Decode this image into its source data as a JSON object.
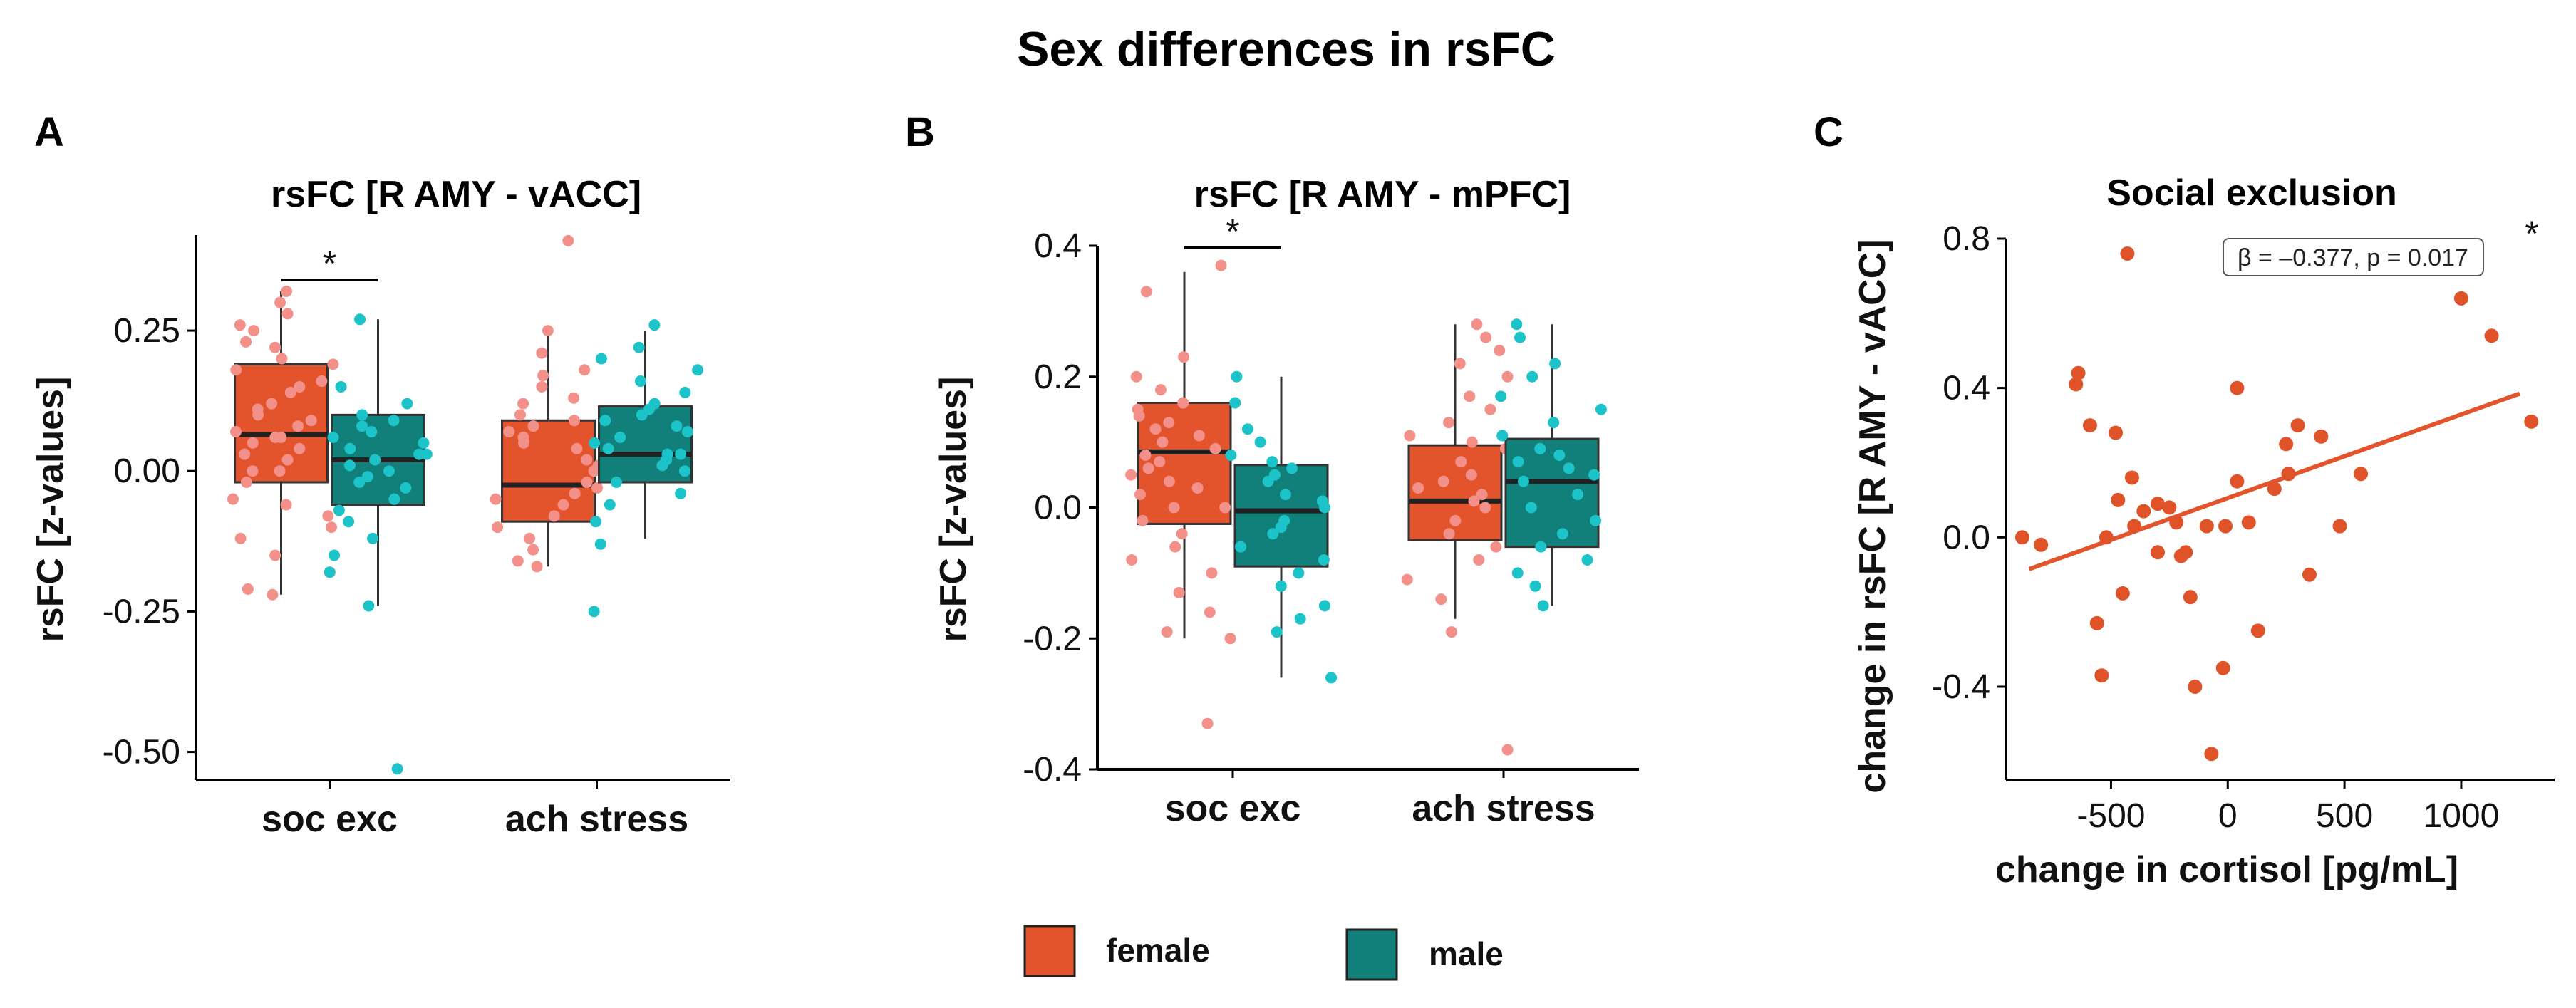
{
  "figure": {
    "title": "Sex differences in rsFC",
    "colors": {
      "female_box": "#E3532C",
      "male_box": "#12807A",
      "female_point": "#F4908A",
      "male_point": "#1CC3C8",
      "regression": "#E3532C",
      "scatter_point": "#E05329"
    },
    "legend": [
      {
        "label": "female",
        "color": "#E3532C"
      },
      {
        "label": "male",
        "color": "#12807A"
      }
    ]
  },
  "chart_data": [
    {
      "type": "box",
      "panel": "A",
      "title": "rsFC [R AMY - vACC]",
      "ylabel": "rsFC [z-values]",
      "xlabel": "",
      "ylim": [
        -0.55,
        0.42
      ],
      "yticks": [
        0.25,
        0.0,
        -0.25,
        -0.5
      ],
      "ytick_labels": [
        "0.25",
        "0.00",
        "-0.25",
        "-0.50"
      ],
      "categories": [
        "soc exc",
        "ach stress"
      ],
      "significance": [
        {
          "category": "soc exc",
          "label": "*"
        }
      ],
      "series": [
        {
          "name": "female",
          "boxes": [
            {
              "q1": -0.02,
              "median": 0.065,
              "q3": 0.19,
              "whisker_low": -0.22,
              "whisker_high": 0.32
            },
            {
              "q1": -0.09,
              "median": -0.025,
              "q3": 0.09,
              "whisker_low": -0.17,
              "whisker_high": 0.25
            }
          ]
        },
        {
          "name": "male",
          "boxes": [
            {
              "q1": -0.06,
              "median": 0.02,
              "q3": 0.1,
              "whisker_low": -0.24,
              "whisker_high": 0.27
            },
            {
              "q1": -0.02,
              "median": 0.03,
              "q3": 0.115,
              "whisker_low": -0.12,
              "whisker_high": 0.25
            }
          ]
        }
      ]
    },
    {
      "type": "box",
      "panel": "B",
      "title": "rsFC [R AMY - mPFC]",
      "ylabel": "rsFC [z-values]",
      "xlabel": "",
      "ylim": [
        -0.4,
        0.4
      ],
      "yticks": [
        0.4,
        0.2,
        0.0,
        -0.2,
        -0.4
      ],
      "ytick_labels": [
        "0.4",
        "0.2",
        "0.0",
        "-0.2",
        "-0.4"
      ],
      "categories": [
        "soc exc",
        "ach stress"
      ],
      "significance": [
        {
          "category": "soc exc",
          "label": "*"
        }
      ],
      "series": [
        {
          "name": "female",
          "boxes": [
            {
              "q1": -0.025,
              "median": 0.085,
              "q3": 0.16,
              "whisker_low": -0.2,
              "whisker_high": 0.36
            },
            {
              "q1": -0.05,
              "median": 0.01,
              "q3": 0.095,
              "whisker_low": -0.17,
              "whisker_high": 0.28
            }
          ]
        },
        {
          "name": "male",
          "boxes": [
            {
              "q1": -0.09,
              "median": -0.005,
              "q3": 0.065,
              "whisker_low": -0.26,
              "whisker_high": 0.2
            },
            {
              "q1": -0.06,
              "median": 0.04,
              "q3": 0.105,
              "whisker_low": -0.15,
              "whisker_high": 0.28
            }
          ]
        }
      ]
    },
    {
      "type": "scatter",
      "panel": "C",
      "title": "Social exclusion",
      "xlabel": "change in cortisol [pg/mL]",
      "ylabel": "change in rsFC [R AMY - vACC]",
      "xlim": [
        -950,
        1400
      ],
      "ylim": [
        -0.65,
        0.8
      ],
      "xticks": [
        -500,
        0,
        500,
        1000
      ],
      "xtick_labels": [
        "-500",
        "0",
        "500",
        "1000"
      ],
      "yticks": [
        0.8,
        0.4,
        0.0,
        -0.4
      ],
      "ytick_labels": [
        "0.8",
        "0.4",
        "0.0",
        "-0.4"
      ],
      "annotation": "β = –0.377, p = 0.017",
      "significance": "*",
      "regression": {
        "x": [
          -850,
          1250
        ],
        "y": [
          -0.085,
          0.385
        ]
      },
      "points": [
        [
          -880,
          0.0
        ],
        [
          -800,
          -0.02
        ],
        [
          -640,
          0.44
        ],
        [
          -650,
          0.41
        ],
        [
          -590,
          0.3
        ],
        [
          -560,
          -0.23
        ],
        [
          -540,
          -0.37
        ],
        [
          -520,
          0.0
        ],
        [
          -480,
          0.28
        ],
        [
          -450,
          -0.15
        ],
        [
          -470,
          0.1
        ],
        [
          -430,
          0.76
        ],
        [
          -410,
          0.16
        ],
        [
          -400,
          0.03
        ],
        [
          -300,
          0.09
        ],
        [
          -250,
          0.08
        ],
        [
          -220,
          0.04
        ],
        [
          -200,
          -0.05
        ],
        [
          -180,
          -0.04
        ],
        [
          -160,
          -0.16
        ],
        [
          -140,
          -0.4
        ],
        [
          -90,
          0.03
        ],
        [
          -70,
          -0.58
        ],
        [
          -20,
          -0.35
        ],
        [
          -10,
          0.03
        ],
        [
          40,
          0.4
        ],
        [
          40,
          0.15
        ],
        [
          90,
          0.04
        ],
        [
          130,
          -0.25
        ],
        [
          200,
          0.13
        ],
        [
          250,
          0.25
        ],
        [
          260,
          0.17
        ],
        [
          300,
          0.3
        ],
        [
          350,
          -0.1
        ],
        [
          400,
          0.27
        ],
        [
          480,
          0.03
        ],
        [
          570,
          0.17
        ],
        [
          1000,
          0.64
        ],
        [
          1130,
          0.54
        ],
        [
          1300,
          0.31
        ],
        [
          -300,
          -0.04
        ],
        [
          -360,
          0.07
        ]
      ]
    }
  ],
  "female_points_A_soc": [
    0.3,
    0.28,
    0.26,
    0.25,
    0.22,
    0.2,
    0.18,
    0.16,
    0.14,
    0.12,
    0.1,
    0.09,
    0.08,
    0.07,
    0.06,
    0.05,
    0.04,
    0.03,
    0.02,
    0.0,
    -0.02,
    -0.05,
    -0.08,
    -0.1,
    -0.12,
    -0.15,
    -0.18,
    -0.21,
    -0.22,
    0.32,
    0.15,
    0.11,
    0.23,
    0.19,
    0.06,
    0.0,
    -0.06
  ],
  "male_points_A_soc": [
    0.27,
    0.15,
    0.12,
    0.1,
    0.08,
    0.06,
    0.05,
    0.04,
    0.03,
    0.02,
    0.01,
    0.0,
    -0.01,
    -0.03,
    -0.05,
    -0.07,
    -0.09,
    -0.12,
    -0.15,
    -0.18,
    -0.24,
    -0.53,
    0.09,
    0.03,
    -0.02,
    0.07
  ],
  "female_points_A_ach": [
    0.25,
    0.21,
    0.18,
    0.17,
    0.15,
    0.12,
    0.1,
    0.09,
    0.07,
    0.05,
    0.04,
    0.02,
    0.01,
    0.0,
    -0.02,
    -0.04,
    -0.06,
    -0.08,
    -0.1,
    -0.12,
    -0.14,
    -0.16,
    -0.17,
    0.41,
    0.13,
    0.06,
    -0.03,
    -0.05,
    0.08
  ],
  "male_points_A_ach": [
    0.26,
    0.22,
    0.2,
    0.18,
    0.16,
    0.14,
    0.12,
    0.1,
    0.09,
    0.08,
    0.07,
    0.06,
    0.05,
    0.04,
    0.03,
    0.02,
    0.01,
    0.0,
    -0.02,
    -0.04,
    -0.06,
    -0.09,
    -0.13,
    -0.25,
    0.11,
    0.03
  ],
  "female_points_B_soc": [
    0.37,
    0.33,
    0.23,
    0.2,
    0.18,
    0.16,
    0.15,
    0.13,
    0.12,
    0.1,
    0.09,
    0.08,
    0.06,
    0.05,
    0.03,
    0.02,
    0.0,
    -0.02,
    -0.04,
    -0.06,
    -0.08,
    -0.1,
    -0.13,
    -0.16,
    -0.19,
    -0.2,
    -0.33,
    0.11,
    0.07,
    0.04,
    0.14,
    0.0
  ],
  "male_points_B_soc": [
    0.2,
    0.16,
    0.12,
    0.1,
    0.08,
    0.06,
    0.05,
    0.04,
    0.02,
    0.0,
    -0.02,
    -0.04,
    -0.06,
    -0.08,
    -0.1,
    -0.12,
    -0.15,
    -0.17,
    -0.19,
    -0.26,
    0.01,
    0.07,
    -0.03
  ],
  "female_points_B_ach": [
    0.28,
    0.26,
    0.24,
    0.22,
    0.2,
    0.17,
    0.15,
    0.13,
    0.11,
    0.09,
    0.07,
    0.05,
    0.04,
    0.02,
    0.0,
    -0.02,
    -0.04,
    -0.06,
    -0.08,
    -0.11,
    -0.14,
    -0.19,
    -0.37,
    0.1,
    0.03,
    0.01
  ],
  "male_points_B_ach": [
    0.28,
    0.26,
    0.22,
    0.2,
    0.17,
    0.15,
    0.13,
    0.11,
    0.09,
    0.07,
    0.06,
    0.04,
    0.02,
    0.0,
    -0.02,
    -0.04,
    -0.06,
    -0.08,
    -0.1,
    -0.12,
    -0.15,
    0.05,
    0.08
  ]
}
